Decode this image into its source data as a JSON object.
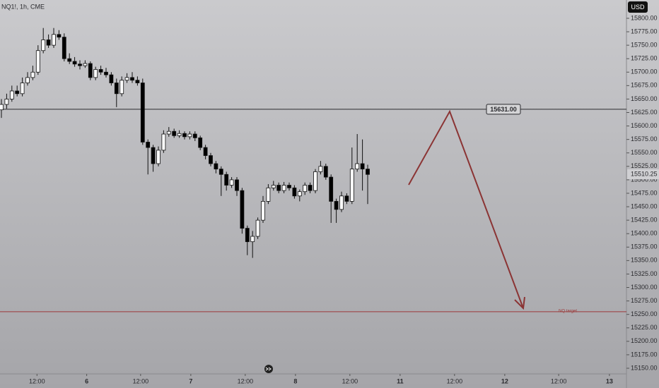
{
  "chart_data": {
    "type": "candlestick",
    "title": "NQ1!, 1h, CME",
    "currency": "USD",
    "x": [
      0,
      1,
      2,
      3,
      4,
      5,
      6,
      7,
      8,
      9,
      10,
      11,
      12,
      13,
      14,
      15,
      16,
      17,
      18,
      19,
      20,
      21,
      22,
      23,
      24,
      25,
      26,
      27,
      28,
      29,
      30,
      31,
      32,
      33,
      34,
      35,
      36,
      37,
      38,
      39,
      40,
      41,
      42,
      43,
      44,
      45,
      46,
      47,
      48,
      49,
      50,
      51,
      52,
      53,
      54,
      55,
      56,
      57,
      58,
      59,
      60,
      61,
      62,
      63,
      64,
      65,
      66,
      67,
      68,
      69,
      70
    ],
    "open": [
      15630,
      15640,
      15650,
      15665,
      15660,
      15680,
      15690,
      15700,
      15740,
      15760,
      15750,
      15770,
      15765,
      15725,
      15720,
      15715,
      15712,
      15716,
      15690,
      15705,
      15700,
      15695,
      15680,
      15660,
      15685,
      15690,
      15685,
      15680,
      15570,
      15560,
      15530,
      15555,
      15585,
      15590,
      15582,
      15586,
      15580,
      15585,
      15578,
      15560,
      15545,
      15530,
      15520,
      15510,
      15490,
      15500,
      15480,
      15410,
      15385,
      15395,
      15425,
      15460,
      15485,
      15490,
      15480,
      15490,
      15485,
      15470,
      15478,
      15490,
      15480,
      15515,
      15525,
      15505,
      15460,
      15445,
      15470,
      15460,
      15520,
      15530,
      15520
    ],
    "high": [
      15650,
      15660,
      15675,
      15675,
      15690,
      15700,
      15712,
      15750,
      15782,
      15770,
      15782,
      15778,
      15772,
      15735,
      15728,
      15722,
      15722,
      15720,
      15710,
      15712,
      15708,
      15700,
      15688,
      15692,
      15698,
      15700,
      15692,
      15688,
      15575,
      15565,
      15562,
      15592,
      15598,
      15595,
      15592,
      15590,
      15590,
      15590,
      15582,
      15565,
      15550,
      15535,
      15525,
      15515,
      15505,
      15505,
      15485,
      15415,
      15405,
      15430,
      15470,
      15492,
      15498,
      15495,
      15496,
      15495,
      15490,
      15482,
      15495,
      15495,
      15520,
      15535,
      15530,
      15510,
      15465,
      15478,
      15475,
      15560,
      15585,
      15575,
      15528
    ],
    "low": [
      15615,
      15632,
      15645,
      15655,
      15655,
      15675,
      15685,
      15695,
      15735,
      15745,
      15745,
      15760,
      15720,
      15715,
      15710,
      15705,
      15708,
      15685,
      15685,
      15695,
      15690,
      15675,
      15635,
      15655,
      15680,
      15680,
      15675,
      15565,
      15510,
      15515,
      15525,
      15550,
      15580,
      15578,
      15578,
      15575,
      15575,
      15572,
      15555,
      15538,
      15525,
      15512,
      15470,
      15480,
      15485,
      15470,
      15400,
      15360,
      15355,
      15390,
      15420,
      15455,
      15480,
      15475,
      15475,
      15480,
      15465,
      15460,
      15472,
      15475,
      15475,
      15510,
      15500,
      15420,
      15420,
      15440,
      15455,
      15455,
      15515,
      15480,
      15455
    ],
    "close": [
      15640,
      15650,
      15665,
      15660,
      15680,
      15690,
      15700,
      15740,
      15760,
      15750,
      15770,
      15765,
      15725,
      15720,
      15715,
      15712,
      15716,
      15690,
      15705,
      15700,
      15695,
      15680,
      15660,
      15685,
      15690,
      15685,
      15680,
      15570,
      15560,
      15530,
      15555,
      15585,
      15590,
      15582,
      15586,
      15580,
      15585,
      15578,
      15560,
      15545,
      15530,
      15520,
      15510,
      15490,
      15500,
      15480,
      15410,
      15385,
      15395,
      15425,
      15460,
      15485,
      15490,
      15480,
      15490,
      15485,
      15470,
      15478,
      15490,
      15480,
      15515,
      15525,
      15505,
      15460,
      15445,
      15470,
      15460,
      15520,
      15530,
      15520,
      15510
    ],
    "up_color": "#ffffff",
    "down_color": "#000000",
    "xlim": [
      -0.27,
      119.46
    ],
    "xticks": [
      {
        "value": 6.8,
        "label": "12:00"
      },
      {
        "value": 16.3,
        "label": "6"
      },
      {
        "value": 26.6,
        "label": "12:00"
      },
      {
        "value": 36.2,
        "label": "7"
      },
      {
        "value": 46.6,
        "label": "12:00"
      },
      {
        "value": 56.2,
        "label": "8"
      },
      {
        "value": 66.6,
        "label": "12:00"
      },
      {
        "value": 76.2,
        "label": "11"
      },
      {
        "value": 86.6,
        "label": "12:00"
      },
      {
        "value": 96.2,
        "label": "12"
      },
      {
        "value": 106.5,
        "label": "12:00"
      },
      {
        "value": 116.2,
        "label": "13"
      }
    ],
    "ylim": [
      15139.5,
      15834
    ],
    "yticks": [
      {
        "value": 15150,
        "label": "15150.00"
      },
      {
        "value": 15175,
        "label": "15175.00"
      },
      {
        "value": 15200,
        "label": "15200.00"
      },
      {
        "value": 15225,
        "label": "15225.00"
      },
      {
        "value": 15250,
        "label": "15250.00"
      },
      {
        "value": 15275,
        "label": "15275.00"
      },
      {
        "value": 15300,
        "label": "15300.00"
      },
      {
        "value": 15325,
        "label": "15325.00"
      },
      {
        "value": 15350,
        "label": "15350.00"
      },
      {
        "value": 15375,
        "label": "15375.00"
      },
      {
        "value": 15400,
        "label": "15400.00"
      },
      {
        "value": 15425,
        "label": "15425.00"
      },
      {
        "value": 15450,
        "label": "15450.00"
      },
      {
        "value": 15475,
        "label": "15475.00"
      },
      {
        "value": 15500,
        "label": "15500.00"
      },
      {
        "value": 15525,
        "label": "15525.00"
      },
      {
        "value": 15550,
        "label": "15550.00"
      },
      {
        "value": 15575,
        "label": "15575.00"
      },
      {
        "value": 15600,
        "label": "15600.00"
      },
      {
        "value": 15625,
        "label": "15625.00"
      },
      {
        "value": 15650,
        "label": "15650.00"
      },
      {
        "value": 15675,
        "label": "15675.00"
      },
      {
        "value": 15700,
        "label": "15700.00"
      },
      {
        "value": 15725,
        "label": "15725.00"
      },
      {
        "value": 15750,
        "label": "15750.00"
      },
      {
        "value": 15775,
        "label": "15775.00"
      },
      {
        "value": 15800,
        "label": "15800.00"
      }
    ],
    "level": {
      "value": 15631,
      "label": "15631.00",
      "color": "#2a2a2e"
    },
    "target": {
      "value": 15255,
      "text": "NQ target",
      "color": "#9b3a3a"
    },
    "last_price": 15510.25
  }
}
